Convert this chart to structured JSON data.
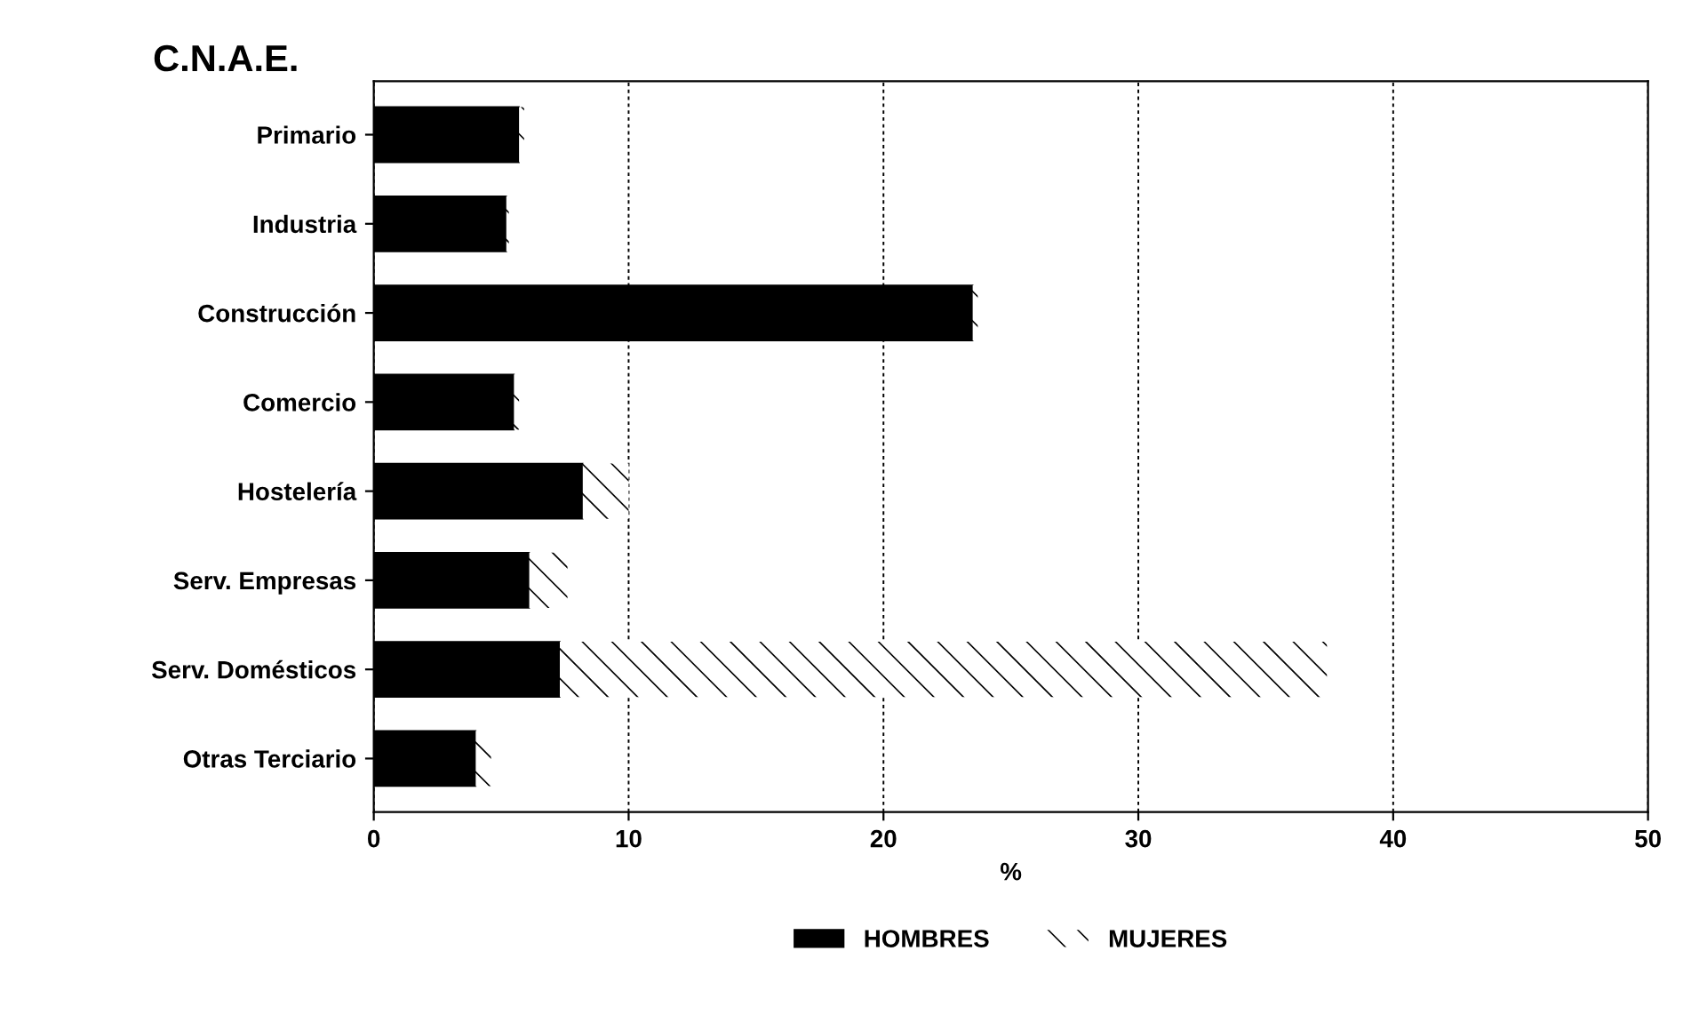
{
  "chart_data": {
    "type": "bar",
    "orientation": "horizontal",
    "stacked": true,
    "title": "C.N.A.E.",
    "xlabel": "%",
    "categories": [
      "Primario",
      "Industria",
      "Construcción",
      "Comercio",
      "Hostelería",
      "Serv. Empresas",
      "Serv. Domésticos",
      "Otras Terciario"
    ],
    "series": [
      {
        "name": "HOMBRES",
        "color": "#000000",
        "values": [
          5.7,
          5.2,
          23.5,
          5.5,
          8.2,
          6.1,
          7.3,
          4.0
        ]
      },
      {
        "name": "MUJERES",
        "color": "#ffffff",
        "values": [
          0.2,
          0.1,
          0.2,
          0.2,
          1.8,
          1.5,
          30.1,
          0.6
        ]
      }
    ],
    "xlim": [
      0,
      50
    ],
    "xticks": [
      0,
      10,
      20,
      30,
      40,
      50
    ],
    "grid": "x",
    "legend": "bottom"
  }
}
